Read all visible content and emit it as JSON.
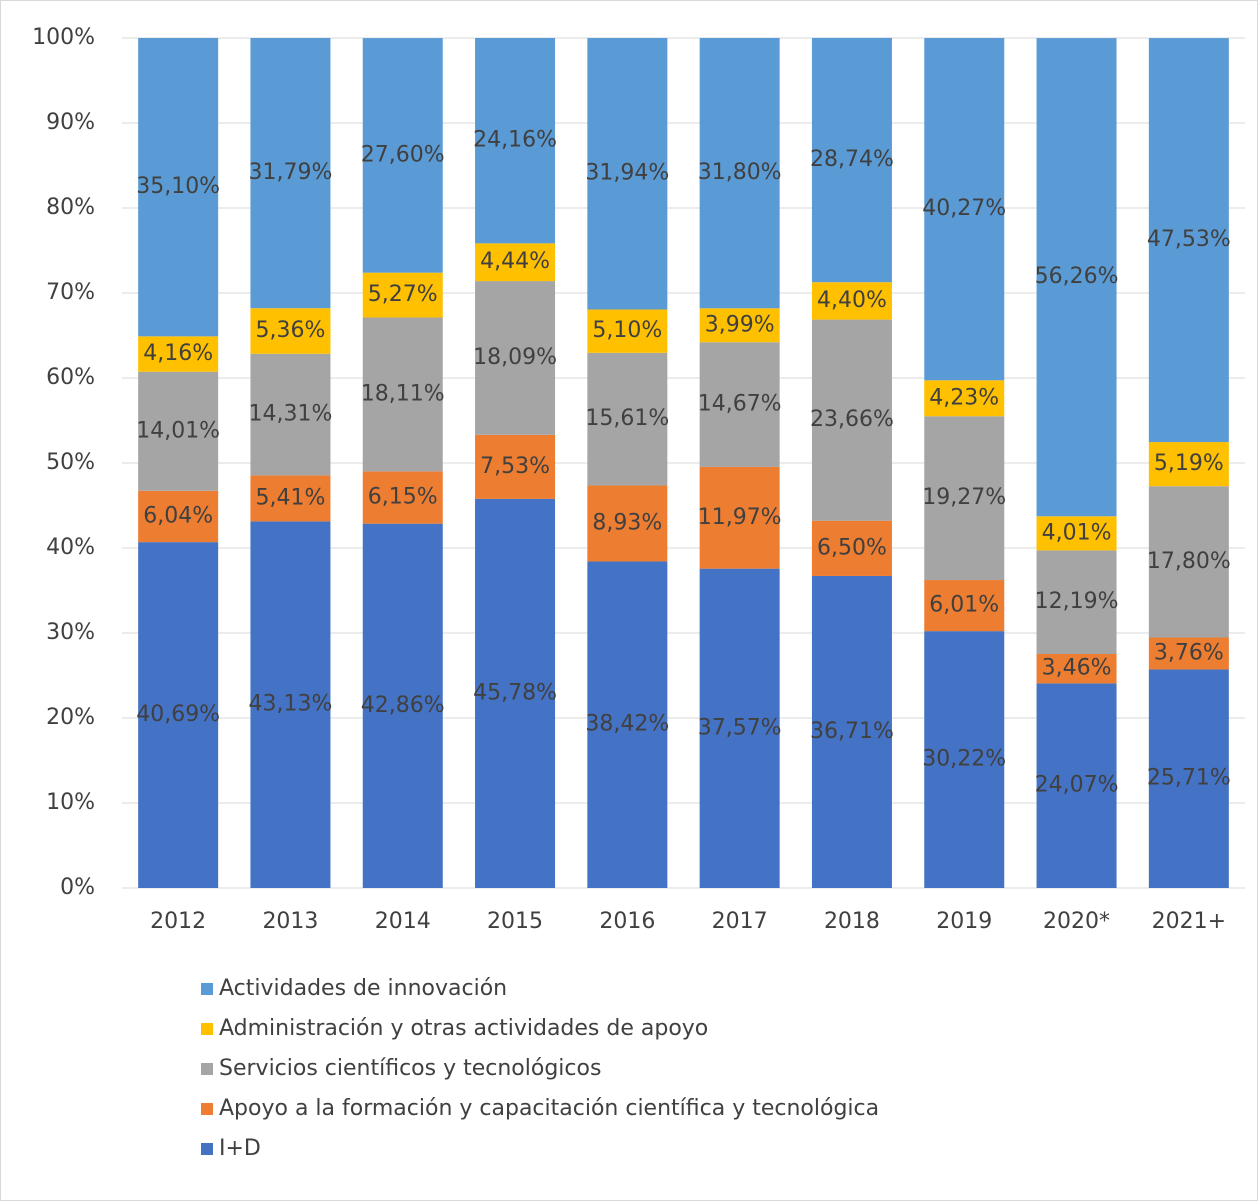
{
  "chart_data": {
    "type": "stacked_bar",
    "categories": [
      "2012",
      "2013",
      "2014",
      "2015",
      "2016",
      "2017",
      "2018",
      "2019",
      "2020*",
      "2021+"
    ],
    "series": [
      {
        "name": "I+D",
        "color": "#4472c4",
        "values": [
          40.69,
          43.13,
          42.86,
          45.78,
          38.42,
          37.57,
          36.71,
          30.22,
          24.07,
          25.71
        ],
        "value_labels": [
          "40,69%",
          "43,13%",
          "42,86%",
          "45,78%",
          "38,42%",
          "37,57%",
          "36,71%",
          "30,22%",
          "24,07%",
          "25,71%"
        ]
      },
      {
        "name": "Apoyo a la formación y capacitación científica y tecnológica",
        "color": "#ed7d31",
        "values": [
          6.04,
          5.41,
          6.15,
          7.53,
          8.93,
          11.97,
          6.5,
          6.01,
          3.46,
          3.76
        ],
        "value_labels": [
          "6,04%",
          "5,41%",
          "6,15%",
          "7,53%",
          "8,93%",
          "11,97%",
          "6,50%",
          "6,01%",
          "3,46%",
          "3,76%"
        ]
      },
      {
        "name": "Servicios científicos y tecnológicos",
        "color": "#a5a5a5",
        "values": [
          14.01,
          14.31,
          18.11,
          18.09,
          15.61,
          14.67,
          23.66,
          19.27,
          12.19,
          17.8
        ],
        "value_labels": [
          "14,01%",
          "14,31%",
          "18,11%",
          "18,09%",
          "15,61%",
          "14,67%",
          "23,66%",
          "19,27%",
          "12,19%",
          "17,80%"
        ]
      },
      {
        "name": "Administración y otras actividades de apoyo",
        "color": "#ffc000",
        "values": [
          4.16,
          5.36,
          5.27,
          4.44,
          5.1,
          3.99,
          4.4,
          4.23,
          4.01,
          5.19
        ],
        "value_labels": [
          "4,16%",
          "5,36%",
          "5,27%",
          "4,44%",
          "5,10%",
          "3,99%",
          "4,40%",
          "4,23%",
          "4,01%",
          "5,19%"
        ]
      },
      {
        "name": "Actividades de innovación",
        "color": "#5b9bd5",
        "values": [
          35.1,
          31.79,
          27.6,
          24.16,
          31.94,
          31.8,
          28.74,
          40.27,
          56.26,
          47.53
        ],
        "value_labels": [
          "35,10%",
          "31,79%",
          "27,60%",
          "24,16%",
          "31,94%",
          "31,80%",
          "28,74%",
          "40,27%",
          "56,26%",
          "47,53%"
        ]
      }
    ],
    "ylim": [
      0,
      100
    ],
    "yticks": [
      {
        "value": 0,
        "label": "0%"
      },
      {
        "value": 10,
        "label": "10%"
      },
      {
        "value": 20,
        "label": "20%"
      },
      {
        "value": 30,
        "label": "30%"
      },
      {
        "value": 40,
        "label": "40%"
      },
      {
        "value": 50,
        "label": "50%"
      },
      {
        "value": 60,
        "label": "60%"
      },
      {
        "value": 70,
        "label": "70%"
      },
      {
        "value": 80,
        "label": "80%"
      },
      {
        "value": 90,
        "label": "90%"
      },
      {
        "value": 100,
        "label": "100%"
      }
    ],
    "grid": true,
    "legend": "bottom"
  }
}
